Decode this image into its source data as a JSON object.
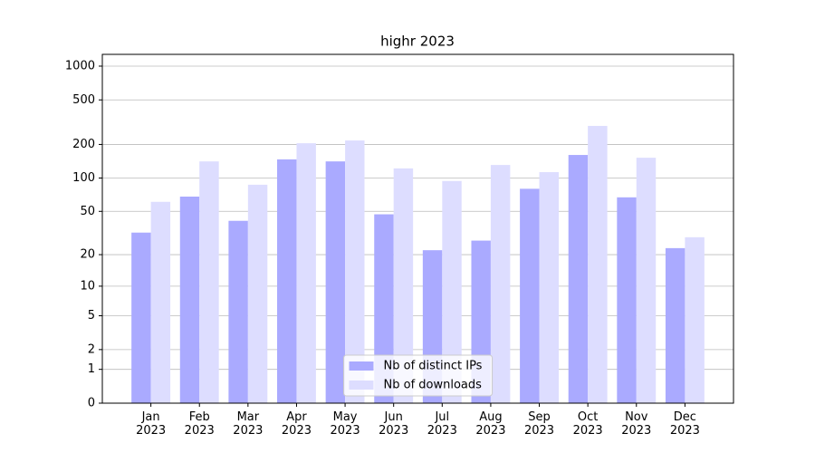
{
  "chart_data": {
    "type": "bar",
    "title": "highr 2023",
    "categories": [
      "Jan\n2023",
      "Feb\n2023",
      "Mar\n2023",
      "Apr\n2023",
      "May\n2023",
      "Jun\n2023",
      "Jul\n2023",
      "Aug\n2023",
      "Sep\n2023",
      "Oct\n2023",
      "Nov\n2023",
      "Dec\n2023"
    ],
    "series": [
      {
        "name": "Nb of distinct IPs",
        "color": "#aaaaff",
        "values": [
          32,
          68,
          41,
          147,
          141,
          47,
          22,
          27,
          80,
          161,
          67,
          23
        ]
      },
      {
        "name": "Nb of downloads",
        "color": "#ddddff",
        "values": [
          61,
          141,
          87,
          205,
          217,
          122,
          94,
          131,
          113,
          293,
          152,
          29
        ]
      }
    ],
    "yscale": "log1p",
    "ylim": [
      0,
      1273
    ],
    "yticks": [
      0,
      1,
      2,
      5,
      10,
      20,
      50,
      100,
      200,
      500,
      1000
    ],
    "grid": true,
    "legend": "lower center"
  }
}
